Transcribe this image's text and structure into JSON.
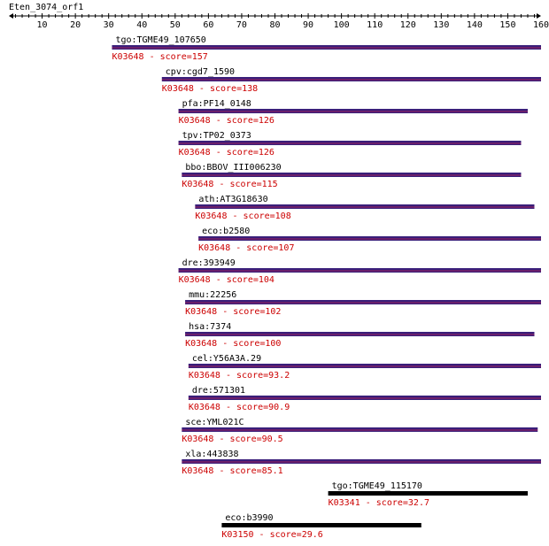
{
  "query": {
    "name": "Eten_3074_orf1",
    "length": 160
  },
  "ruler": {
    "ticks": [
      10,
      20,
      30,
      40,
      50,
      60,
      70,
      80,
      90,
      100,
      110,
      120,
      130,
      140,
      150,
      160
    ]
  },
  "colors": {
    "bar_fill_top": "#3a1f7a",
    "bar_fill_mid": "#6b1f6b",
    "bar_fill_black": "#000000",
    "score_text": "#cc0000",
    "name_text": "#000000"
  },
  "hits": [
    {
      "name": "tgo:TGME49_107650",
      "ko": "K03648",
      "score": "157",
      "start": 31,
      "end": 160,
      "style": "purple"
    },
    {
      "name": "cpv:cgd7_1590",
      "ko": "K03648",
      "score": "138",
      "start": 46,
      "end": 160,
      "style": "purple"
    },
    {
      "name": "pfa:PF14_0148",
      "ko": "K03648",
      "score": "126",
      "start": 51,
      "end": 156,
      "style": "purple"
    },
    {
      "name": "tpv:TP02_0373",
      "ko": "K03648",
      "score": "126",
      "start": 51,
      "end": 154,
      "style": "purple"
    },
    {
      "name": "bbo:BBOV_III006230",
      "ko": "K03648",
      "score": "115",
      "start": 52,
      "end": 154,
      "style": "purple"
    },
    {
      "name": "ath:AT3G18630",
      "ko": "K03648",
      "score": "108",
      "start": 56,
      "end": 158,
      "style": "purple"
    },
    {
      "name": "eco:b2580",
      "ko": "K03648",
      "score": "107",
      "start": 57,
      "end": 160,
      "style": "purple"
    },
    {
      "name": "dre:393949",
      "ko": "K03648",
      "score": "104",
      "start": 51,
      "end": 160,
      "style": "purple"
    },
    {
      "name": "mmu:22256",
      "ko": "K03648",
      "score": "102",
      "start": 53,
      "end": 160,
      "style": "purple"
    },
    {
      "name": "hsa:7374",
      "ko": "K03648",
      "score": "100",
      "start": 53,
      "end": 158,
      "style": "purple"
    },
    {
      "name": "cel:Y56A3A.29",
      "ko": "K03648",
      "score": "93.2",
      "start": 54,
      "end": 160,
      "style": "purple"
    },
    {
      "name": "dre:571301",
      "ko": "K03648",
      "score": "90.9",
      "start": 54,
      "end": 160,
      "style": "purple"
    },
    {
      "name": "sce:YML021C",
      "ko": "K03648",
      "score": "90.5",
      "start": 52,
      "end": 159,
      "style": "purple"
    },
    {
      "name": "xla:443838",
      "ko": "K03648",
      "score": "85.1",
      "start": 52,
      "end": 160,
      "style": "purple"
    },
    {
      "name": "tgo:TGME49_115170",
      "ko": "K03341",
      "score": "32.7",
      "start": 96,
      "end": 156,
      "style": "black"
    },
    {
      "name": "eco:b3990",
      "ko": "K03150",
      "score": "29.6",
      "start": 64,
      "end": 124,
      "style": "black"
    }
  ]
}
